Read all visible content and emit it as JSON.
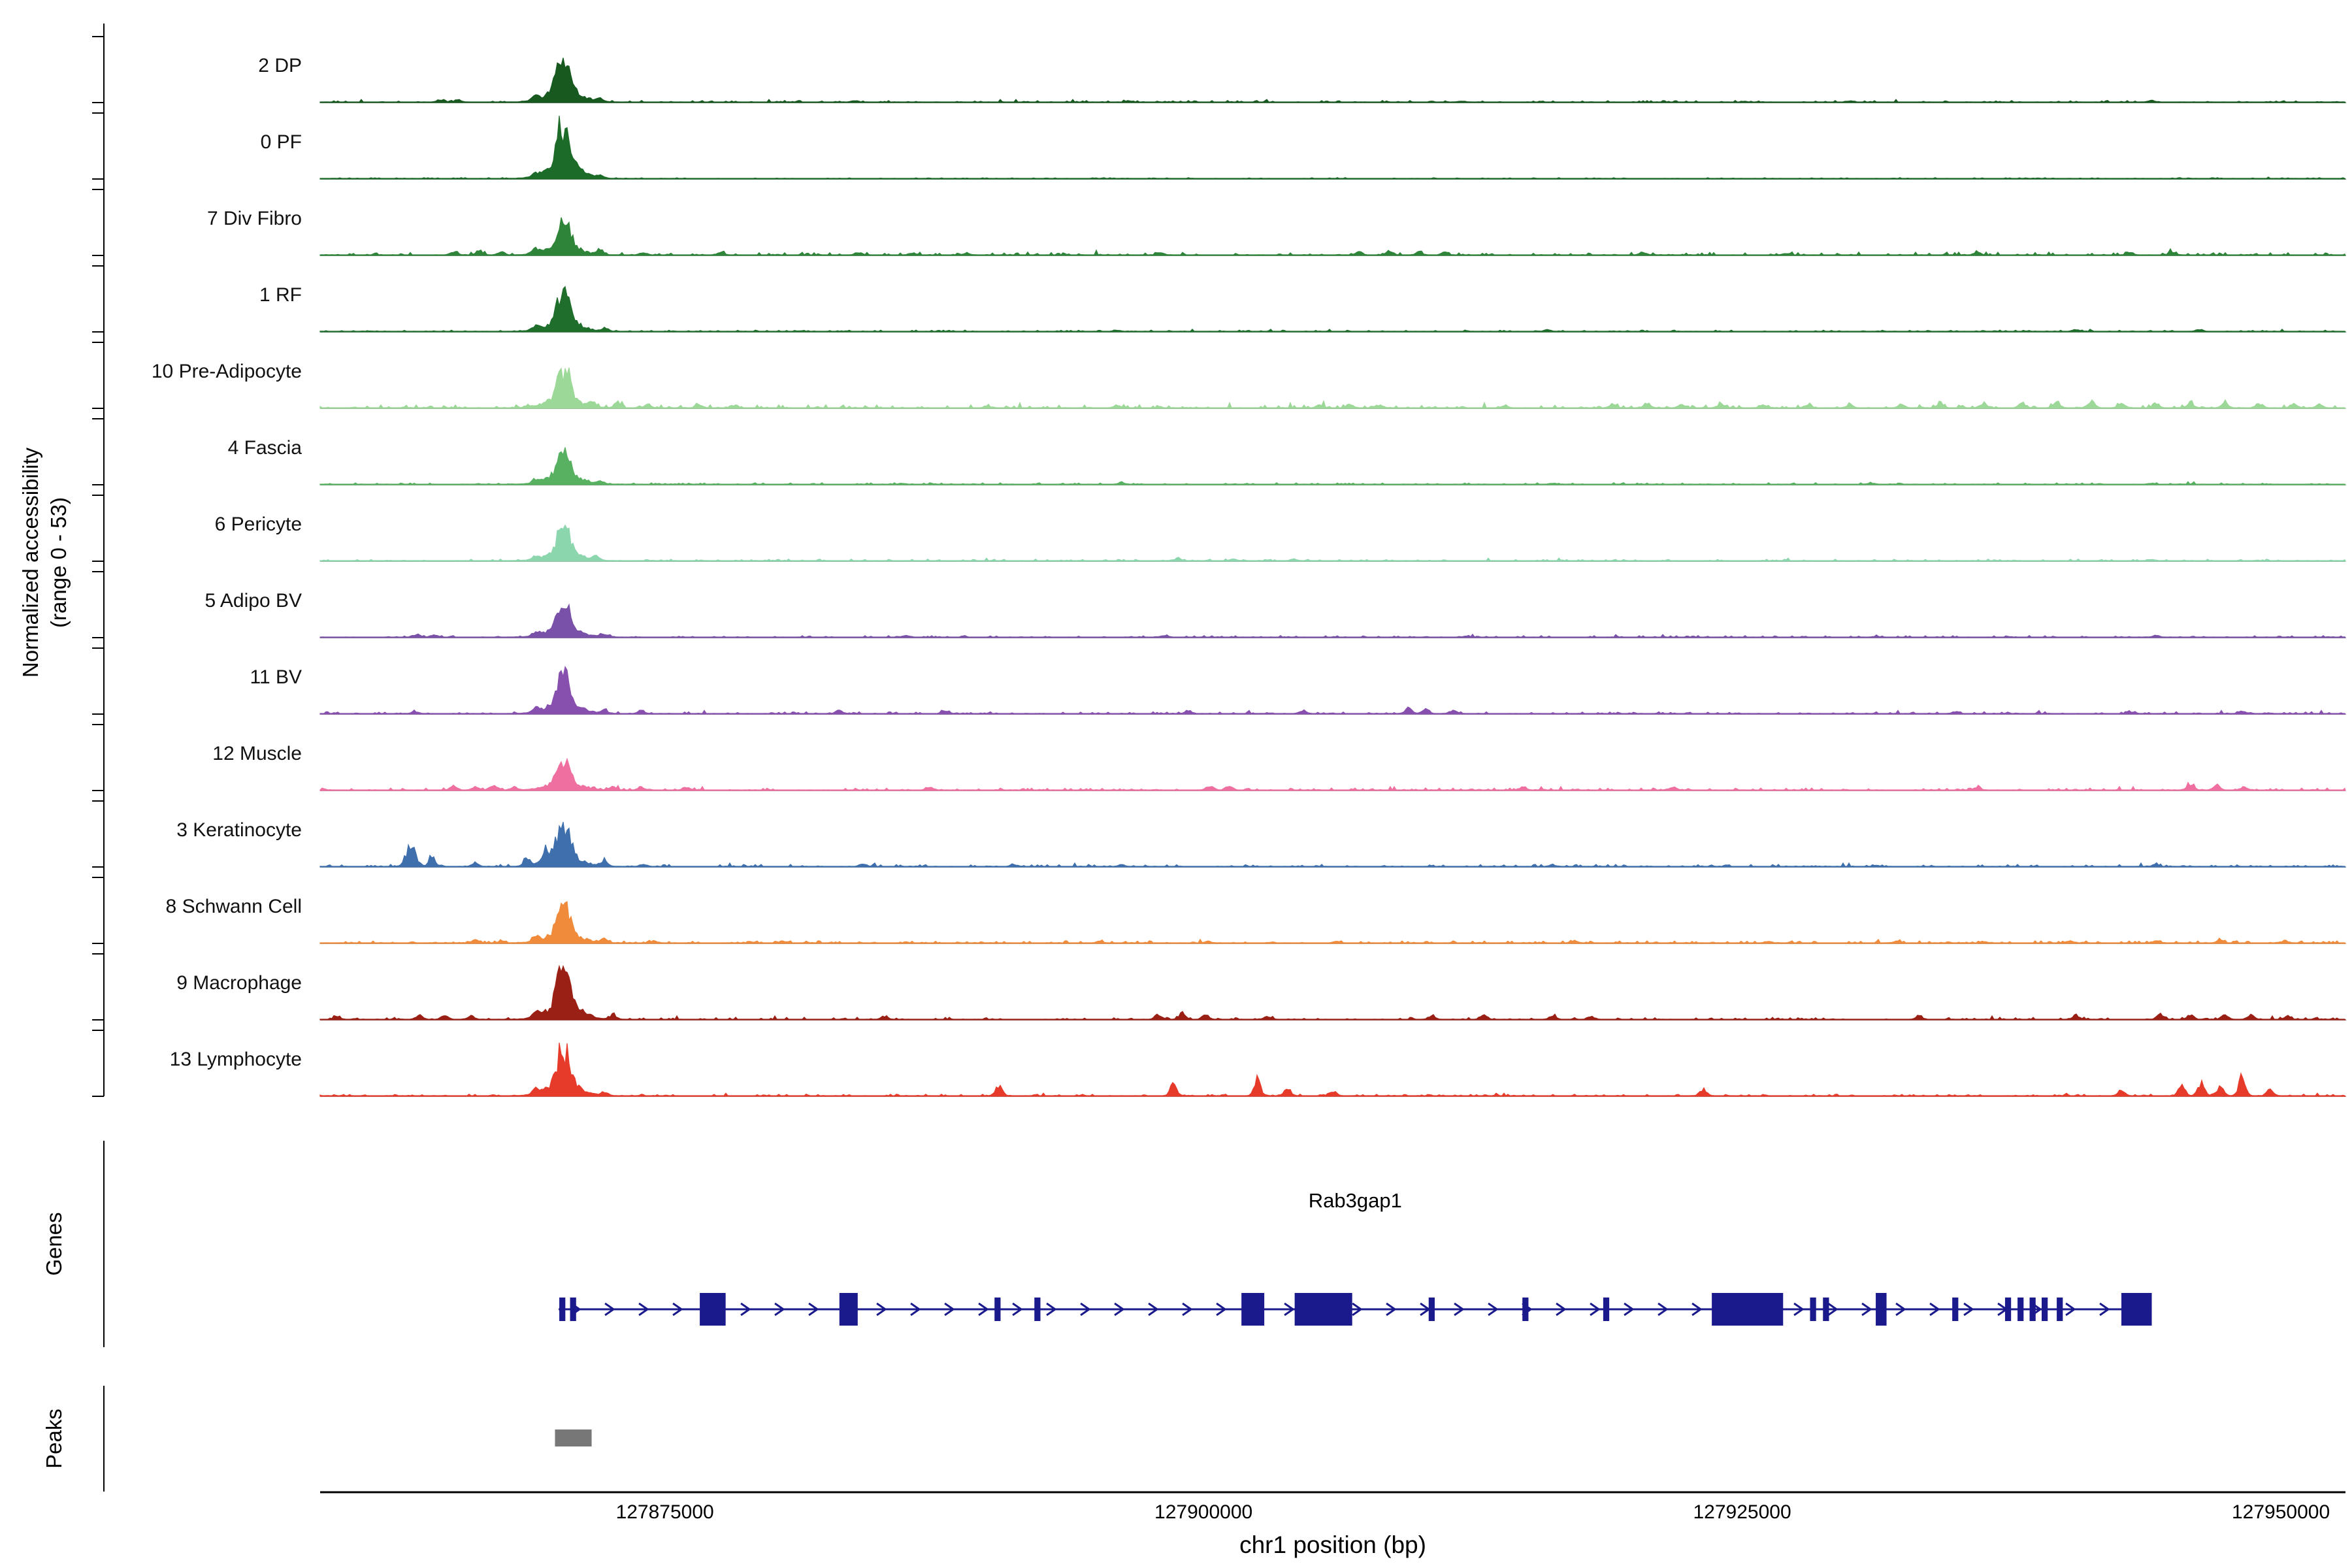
{
  "labels": {
    "y_axis_line1": "Normalized accessibility",
    "y_axis_line2": "(range 0 - 53)",
    "genes": "Genes",
    "peaks": "Peaks"
  },
  "chart_data": {
    "type": "area",
    "subtype": "genome-accessibility-track-plot",
    "region": {
      "chrom": "chr1",
      "start": 127859000,
      "end": 127953000,
      "unit": "bp"
    },
    "x_axis": {
      "label": "chr1 position (bp)",
      "ticks": [
        127875000,
        127900000,
        127925000,
        127950000
      ]
    },
    "y_axis": {
      "label_line1": "Normalized accessibility",
      "label_line2": "(range 0 - 53)",
      "range": [
        0,
        53
      ]
    },
    "main_peak": {
      "pos": 127870300,
      "sigma": 260,
      "base_sigma": 750
    },
    "tracks": [
      {
        "name": "2 DP",
        "color": "#17591f",
        "peak": 0.85,
        "noise": 0.015,
        "bumps": [
          [
            127864600,
            0.05
          ],
          [
            127865400,
            0.04
          ],
          [
            127869000,
            0.08
          ],
          [
            127872000,
            0.06
          ],
          [
            127883800,
            0.03
          ],
          [
            127896500,
            0.02
          ],
          [
            127912000,
            0.02
          ],
          [
            127930000,
            0.02
          ],
          [
            127944000,
            0.03
          ]
        ]
      },
      {
        "name": "0 PF",
        "color": "#1d6b29",
        "peak": 0.95,
        "noise": 0.008,
        "bumps": [
          [
            127869000,
            0.06
          ],
          [
            127872000,
            0.05
          ]
        ]
      },
      {
        "name": "7 Div Fibro",
        "color": "#2e8438",
        "peak": 0.58,
        "noise": 0.028,
        "bumps": [
          [
            127865200,
            0.07
          ],
          [
            127866400,
            0.09
          ],
          [
            127867400,
            0.06
          ],
          [
            127869000,
            0.1
          ],
          [
            127872000,
            0.09
          ],
          [
            127874000,
            0.05
          ],
          [
            127877600,
            0.05
          ],
          [
            127884000,
            0.05
          ],
          [
            127886500,
            0.04
          ],
          [
            127889000,
            0.04
          ],
          [
            127898000,
            0.04
          ],
          [
            127907200,
            0.06
          ],
          [
            127908600,
            0.07
          ],
          [
            127910000,
            0.05
          ],
          [
            127911200,
            0.05
          ],
          [
            127920400,
            0.05
          ],
          [
            127927000,
            0.03
          ],
          [
            127935900,
            0.05
          ],
          [
            127943000,
            0.04
          ],
          [
            127945000,
            0.04
          ]
        ]
      },
      {
        "name": "1 RF",
        "color": "#1f6e2c",
        "peak": 0.68,
        "noise": 0.012,
        "bumps": [
          [
            127858600,
            0.03
          ],
          [
            127869000,
            0.07
          ],
          [
            127872200,
            0.05
          ],
          [
            127896000,
            0.02
          ],
          [
            127916000,
            0.02
          ],
          [
            127940500,
            0.03
          ],
          [
            127946200,
            0.03
          ]
        ]
      },
      {
        "name": "10 Pre-Adipocyte",
        "color": "#9cd897",
        "peak": 0.6,
        "noise": 0.03,
        "bumps": [
          [
            127871600,
            0.1
          ],
          [
            127872800,
            0.08
          ],
          [
            127874200,
            0.06
          ],
          [
            127876600,
            0.06
          ],
          [
            127878200,
            0.05
          ],
          [
            127890000,
            0.03
          ],
          [
            127896000,
            0.04
          ],
          [
            127905400,
            0.06
          ],
          [
            127906800,
            0.06
          ],
          [
            127908200,
            0.05
          ],
          [
            127914000,
            0.04
          ],
          [
            127919000,
            0.07
          ],
          [
            127920600,
            0.08
          ],
          [
            127922200,
            0.06
          ],
          [
            127924000,
            0.07
          ],
          [
            127926000,
            0.06
          ],
          [
            127928000,
            0.06
          ],
          [
            127930000,
            0.06
          ],
          [
            127932400,
            0.07
          ],
          [
            127934200,
            0.09
          ],
          [
            127936200,
            0.1
          ],
          [
            127938000,
            0.09
          ],
          [
            127939600,
            0.1
          ],
          [
            127941200,
            0.12
          ],
          [
            127942600,
            0.1
          ],
          [
            127944200,
            0.09
          ],
          [
            127945800,
            0.11
          ],
          [
            127947400,
            0.09
          ],
          [
            127949000,
            0.09
          ],
          [
            127950600,
            0.08
          ],
          [
            127951800,
            0.07
          ]
        ]
      },
      {
        "name": "4 Fascia",
        "color": "#58b161",
        "peak": 0.6,
        "noise": 0.015,
        "bumps": [
          [
            127869000,
            0.07
          ],
          [
            127872000,
            0.06
          ],
          [
            127886000,
            0.02
          ],
          [
            127896200,
            0.03
          ],
          [
            127916200,
            0.02
          ],
          [
            127931000,
            0.02
          ],
          [
            127944000,
            0.02
          ]
        ]
      },
      {
        "name": "6 Pericyte",
        "color": "#8cd6ae",
        "peak": 0.6,
        "noise": 0.015,
        "bumps": [
          [
            127869000,
            0.06
          ],
          [
            127871800,
            0.07
          ],
          [
            127898800,
            0.04
          ],
          [
            127901400,
            0.03
          ],
          [
            127904200,
            0.03
          ],
          [
            127944000,
            0.02
          ]
        ]
      },
      {
        "name": "5 Adipo BV",
        "color": "#7a51a8",
        "peak": 0.6,
        "noise": 0.015,
        "bumps": [
          [
            127863500,
            0.05
          ],
          [
            127864300,
            0.04
          ],
          [
            127869000,
            0.06
          ],
          [
            127872200,
            0.06
          ],
          [
            127886200,
            0.03
          ],
          [
            127898200,
            0.03
          ],
          [
            127912200,
            0.02
          ],
          [
            127931200,
            0.02
          ],
          [
            127944200,
            0.03
          ]
        ]
      },
      {
        "name": "11 BV",
        "color": "#8850ae",
        "peak": 0.7,
        "noise": 0.018,
        "bumps": [
          [
            127863400,
            0.04
          ],
          [
            127869000,
            0.07
          ],
          [
            127872200,
            0.06
          ],
          [
            127873900,
            0.05
          ],
          [
            127883100,
            0.06
          ],
          [
            127888000,
            0.05
          ],
          [
            127899300,
            0.06
          ],
          [
            127904600,
            0.06
          ],
          [
            127909500,
            0.11
          ],
          [
            127910300,
            0.09
          ],
          [
            127911600,
            0.07
          ],
          [
            127934900,
            0.04
          ],
          [
            127943000,
            0.04
          ],
          [
            127948200,
            0.05
          ]
        ]
      },
      {
        "name": "12 Muscle",
        "color": "#ef6fa0",
        "peak": 0.5,
        "noise": 0.02,
        "bumps": [
          [
            127865200,
            0.08
          ],
          [
            127866200,
            0.07
          ],
          [
            127867000,
            0.09
          ],
          [
            127868000,
            0.06
          ],
          [
            127872600,
            0.07
          ],
          [
            127873900,
            0.06
          ],
          [
            127876000,
            0.06
          ],
          [
            127887300,
            0.06
          ],
          [
            127900300,
            0.09
          ],
          [
            127901200,
            0.08
          ],
          [
            127914800,
            0.05
          ],
          [
            127921800,
            0.05
          ],
          [
            127935900,
            0.05
          ],
          [
            127945800,
            0.13
          ],
          [
            127947000,
            0.1
          ],
          [
            127948300,
            0.06
          ]
        ]
      },
      {
        "name": "3 Keratinocyte",
        "color": "#3f6fad",
        "peak": 0.76,
        "noise": 0.02,
        "bumps": [
          [
            127863200,
            0.4,
            220
          ],
          [
            127864200,
            0.18
          ],
          [
            127866200,
            0.06
          ],
          [
            127868600,
            0.16
          ],
          [
            127869500,
            0.2
          ],
          [
            127872200,
            0.12
          ],
          [
            127874000,
            0.05
          ],
          [
            127884200,
            0.05
          ],
          [
            127891200,
            0.04
          ],
          [
            127896200,
            0.03
          ],
          [
            127916200,
            0.03
          ],
          [
            127931200,
            0.02
          ],
          [
            127944200,
            0.03
          ]
        ]
      },
      {
        "name": "8 Schwann Cell",
        "color": "#ef8b3a",
        "peak": 0.66,
        "noise": 0.02,
        "bumps": [
          [
            127866200,
            0.05
          ],
          [
            127867400,
            0.04
          ],
          [
            127869000,
            0.08
          ],
          [
            127872200,
            0.08
          ],
          [
            127874500,
            0.04
          ],
          [
            127895200,
            0.03
          ],
          [
            127900200,
            0.03
          ],
          [
            127906200,
            0.03
          ],
          [
            127917200,
            0.04
          ],
          [
            127926200,
            0.03
          ],
          [
            127932200,
            0.04
          ],
          [
            127936200,
            0.03
          ],
          [
            127940200,
            0.04
          ],
          [
            127944200,
            0.04
          ],
          [
            127947200,
            0.05
          ],
          [
            127950200,
            0.04
          ]
        ]
      },
      {
        "name": "9 Macrophage",
        "color": "#9a2015",
        "peak": 0.92,
        "noise": 0.02,
        "bumps": [
          [
            127859800,
            0.05
          ],
          [
            127863600,
            0.09
          ],
          [
            127864800,
            0.07
          ],
          [
            127866000,
            0.06
          ],
          [
            127869000,
            0.1
          ],
          [
            127872600,
            0.09
          ],
          [
            127885200,
            0.06
          ],
          [
            127897900,
            0.1
          ],
          [
            127899000,
            0.12
          ],
          [
            127900100,
            0.09
          ],
          [
            127903000,
            0.06
          ],
          [
            127910600,
            0.08
          ],
          [
            127913000,
            0.07
          ],
          [
            127916200,
            0.07
          ],
          [
            127918000,
            0.06
          ],
          [
            127933200,
            0.07
          ],
          [
            127940500,
            0.08
          ],
          [
            127944400,
            0.09
          ],
          [
            127945800,
            0.08
          ],
          [
            127947400,
            0.1
          ],
          [
            127948600,
            0.08
          ],
          [
            127950300,
            0.06
          ]
        ]
      },
      {
        "name": "13 Lymphocyte",
        "color": "#e63a2b",
        "peak": 0.8,
        "noise": 0.015,
        "bumps": [
          [
            127869000,
            0.1
          ],
          [
            127872200,
            0.08
          ],
          [
            127890500,
            0.2
          ],
          [
            127898600,
            0.25
          ],
          [
            127902500,
            0.3
          ],
          [
            127903900,
            0.14
          ],
          [
            127906000,
            0.1
          ],
          [
            127923200,
            0.12
          ],
          [
            127942600,
            0.1
          ],
          [
            127945400,
            0.2
          ],
          [
            127946300,
            0.25
          ],
          [
            127947200,
            0.2
          ],
          [
            127948200,
            0.35
          ],
          [
            127949500,
            0.12
          ]
        ]
      }
    ],
    "genes": [
      {
        "name": "Rab3gap1",
        "chrom": "chr1",
        "start": 127870070,
        "end": 127944010,
        "strand": "+",
        "color": "#1a1a8c",
        "exons": [
          [
            127870100,
            127870380,
            "thin"
          ],
          [
            127870600,
            127870880,
            "thin"
          ],
          [
            127876620,
            127877820,
            "tall"
          ],
          [
            127883100,
            127883950,
            "tall"
          ],
          [
            127890300,
            127890580,
            "thin"
          ],
          [
            127892150,
            127892430,
            "thin"
          ],
          [
            127901760,
            127902820,
            "tall"
          ],
          [
            127904230,
            127906900,
            "tall"
          ],
          [
            127910450,
            127910730,
            "thin"
          ],
          [
            127914800,
            127915080,
            "thin"
          ],
          [
            127918550,
            127918830,
            "thin"
          ],
          [
            127923590,
            127926900,
            "tall"
          ],
          [
            127928150,
            127928430,
            "thin"
          ],
          [
            127928750,
            127929030,
            "thin"
          ],
          [
            127931200,
            127931700,
            "tall"
          ],
          [
            127934750,
            127935030,
            "thin"
          ],
          [
            127937200,
            127937480,
            "thin"
          ],
          [
            127937780,
            127938060,
            "thin"
          ],
          [
            127938340,
            127938620,
            "thin"
          ],
          [
            127938900,
            127939180,
            "thin"
          ],
          [
            127939600,
            127939880,
            "thin"
          ],
          [
            127942600,
            127944010,
            "tall"
          ]
        ]
      }
    ],
    "peaks": [
      {
        "start": 127869900,
        "end": 127871600,
        "color": "#777777"
      }
    ]
  }
}
